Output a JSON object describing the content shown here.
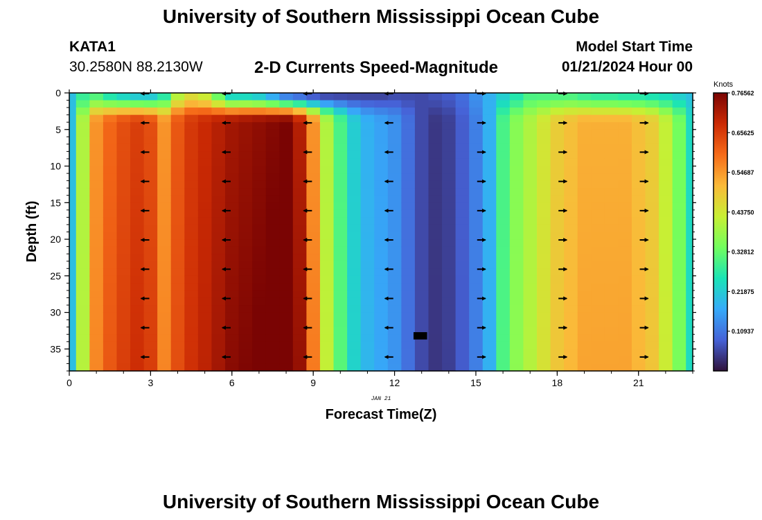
{
  "header": {
    "title": "University of Southern Mississippi Ocean Cube",
    "station_id": "KATA1",
    "coordinates": "30.2580N  88.2130W",
    "plot_title": "2-D Currents Speed-Magnitude",
    "model_start_label": "Model Start Time",
    "model_start_time": "01/21/2024 Hour 00"
  },
  "footer": {
    "title": "University of Southern Mississippi Ocean Cube"
  },
  "chart_data": {
    "type": "heatmap",
    "title": "2-D Currents Speed-Magnitude",
    "xlabel": "Forecast Time(Z)",
    "ylabel": "Depth (ft)",
    "date_label": "JAN 21",
    "xlim": [
      0,
      23
    ],
    "ylim": [
      38,
      0
    ],
    "x_ticks": [
      "0",
      "3",
      "6",
      "9",
      "12",
      "15",
      "18",
      "21"
    ],
    "y_ticks": [
      "0",
      "5",
      "10",
      "15",
      "20",
      "25",
      "30",
      "35"
    ],
    "colorbar": {
      "label": "Knots",
      "range": [
        0,
        0.76562
      ],
      "ticks": [
        "0.76562",
        "0.65625",
        "0.54687",
        "0.43750",
        "0.32812",
        "0.21875",
        "0.10937"
      ],
      "colors": [
        "#30123b",
        "#4662d7",
        "#36aaf9",
        "#1ae4b6",
        "#72fe5e",
        "#c8ef34",
        "#faba39",
        "#f66b19",
        "#cb2a04",
        "#7a0403"
      ]
    },
    "time_hours": [
      0,
      0.5,
      1,
      1.5,
      2,
      2.5,
      3,
      3.5,
      4,
      4.5,
      5,
      5.5,
      6,
      6.5,
      7,
      7.5,
      8,
      8.5,
      9,
      9.5,
      10,
      10.5,
      11,
      11.5,
      12,
      12.5,
      13,
      13.5,
      14,
      14.5,
      15,
      15.5,
      16,
      16.5,
      17,
      17.5,
      18,
      18.5,
      19,
      19.5,
      20,
      20.5,
      21,
      21.5,
      22,
      22.5,
      23
    ],
    "surface_speed_knots": [
      0.2,
      0.28,
      0.3,
      0.25,
      0.22,
      0.2,
      0.2,
      0.26,
      0.4,
      0.45,
      0.42,
      0.32,
      0.22,
      0.22,
      0.2,
      0.15,
      0.1,
      0.08,
      0.06,
      0.05,
      0.05,
      0.05,
      0.05,
      0.05,
      0.06,
      0.06,
      0.06,
      0.07,
      0.08,
      0.1,
      0.14,
      0.18,
      0.22,
      0.26,
      0.3,
      0.3,
      0.3,
      0.3,
      0.28,
      0.27,
      0.27,
      0.26,
      0.26,
      0.25,
      0.24,
      0.22,
      0.2
    ],
    "subsurface_speed_knots": [
      0.2,
      0.4,
      0.55,
      0.6,
      0.63,
      0.65,
      0.63,
      0.55,
      0.62,
      0.66,
      0.68,
      0.7,
      0.72,
      0.73,
      0.74,
      0.75,
      0.76,
      0.7,
      0.55,
      0.4,
      0.3,
      0.22,
      0.18,
      0.16,
      0.14,
      0.1,
      0.06,
      0.04,
      0.05,
      0.08,
      0.12,
      0.18,
      0.3,
      0.36,
      0.4,
      0.44,
      0.48,
      0.5,
      0.52,
      0.52,
      0.52,
      0.52,
      0.5,
      0.48,
      0.42,
      0.34,
      0.24
    ],
    "arrow_hours": [
      2.8,
      5.8,
      8.8,
      11.8,
      15.2,
      18.2,
      21.2
    ],
    "arrow_directions": [
      "west",
      "west",
      "west",
      "west",
      "east",
      "east",
      "east"
    ],
    "arrow_depths_ft": [
      0,
      4,
      8,
      12,
      16,
      20,
      24,
      28,
      32,
      36
    ]
  }
}
